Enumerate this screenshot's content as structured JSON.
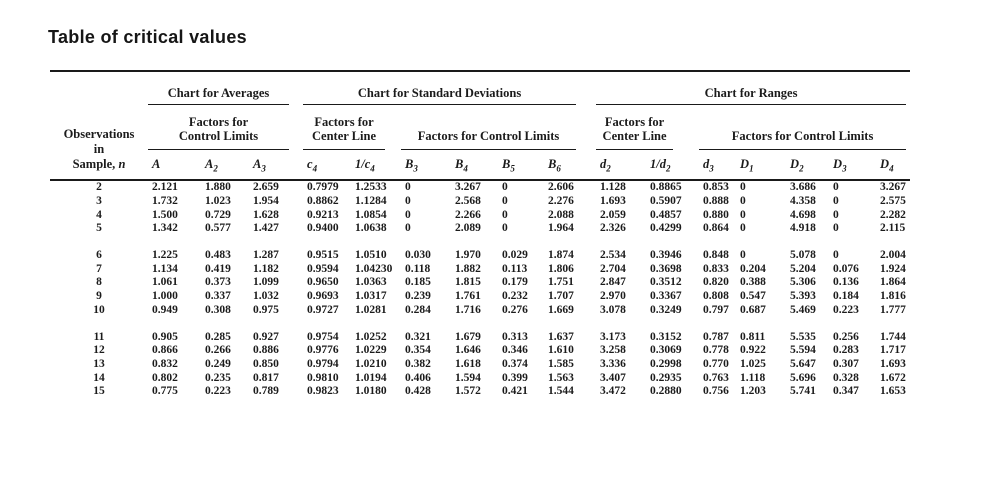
{
  "title": "Table of critical values",
  "colors": {
    "text": "#1b1b1b",
    "rule": "#1a1a1a",
    "background": "#ffffff"
  },
  "table": {
    "obs_header": {
      "line1": "Observations",
      "line2": "in",
      "line3_prefix": "Sample, ",
      "line3_italic": "n"
    },
    "group_headers": [
      "Chart for Averages",
      "Chart for Standard Deviations",
      "Chart for Ranges"
    ],
    "sub_headers": [
      {
        "line1": "Factors for",
        "line2": "Control Limits"
      },
      {
        "line1": "Factors for",
        "line2": "Center Line"
      },
      {
        "line1": "Factors for Control Limits",
        "line2": ""
      },
      {
        "line1": "Factors for",
        "line2": "Center Line"
      },
      {
        "line1": "Factors for Control Limits",
        "line2": ""
      }
    ],
    "col_symbols": [
      {
        "base": "A",
        "sub": ""
      },
      {
        "base": "A",
        "sub": "2"
      },
      {
        "base": "A",
        "sub": "3"
      },
      {
        "base": "c",
        "sub": "4"
      },
      {
        "base": "1/c",
        "sub": "4"
      },
      {
        "base": "B",
        "sub": "3"
      },
      {
        "base": "B",
        "sub": "4"
      },
      {
        "base": "B",
        "sub": "5"
      },
      {
        "base": "B",
        "sub": "6"
      },
      {
        "base": "d",
        "sub": "2"
      },
      {
        "base": "1/d",
        "sub": "2"
      },
      {
        "base": "d",
        "sub": "3"
      },
      {
        "base": "D",
        "sub": "1"
      },
      {
        "base": "D",
        "sub": "2"
      },
      {
        "base": "D",
        "sub": "3"
      },
      {
        "base": "D",
        "sub": "4"
      }
    ],
    "row_groups": [
      [
        {
          "n": "2",
          "v": [
            "2.121",
            "1.880",
            "2.659",
            "0.7979",
            "1.2533",
            "0",
            "3.267",
            "0",
            "2.606",
            "1.128",
            "0.8865",
            "0.853",
            "0",
            "3.686",
            "0",
            "3.267"
          ]
        },
        {
          "n": "3",
          "v": [
            "1.732",
            "1.023",
            "1.954",
            "0.8862",
            "1.1284",
            "0",
            "2.568",
            "0",
            "2.276",
            "1.693",
            "0.5907",
            "0.888",
            "0",
            "4.358",
            "0",
            "2.575"
          ]
        },
        {
          "n": "4",
          "v": [
            "1.500",
            "0.729",
            "1.628",
            "0.9213",
            "1.0854",
            "0",
            "2.266",
            "0",
            "2.088",
            "2.059",
            "0.4857",
            "0.880",
            "0",
            "4.698",
            "0",
            "2.282"
          ]
        },
        {
          "n": "5",
          "v": [
            "1.342",
            "0.577",
            "1.427",
            "0.9400",
            "1.0638",
            "0",
            "2.089",
            "0",
            "1.964",
            "2.326",
            "0.4299",
            "0.864",
            "0",
            "4.918",
            "0",
            "2.115"
          ]
        }
      ],
      [
        {
          "n": "6",
          "v": [
            "1.225",
            "0.483",
            "1.287",
            "0.9515",
            "1.0510",
            "0.030",
            "1.970",
            "0.029",
            "1.874",
            "2.534",
            "0.3946",
            "0.848",
            "0",
            "5.078",
            "0",
            "2.004"
          ]
        },
        {
          "n": "7",
          "v": [
            "1.134",
            "0.419",
            "1.182",
            "0.9594",
            "1.04230",
            "0.118",
            "1.882",
            "0.113",
            "1.806",
            "2.704",
            "0.3698",
            "0.833",
            "0.204",
            "5.204",
            "0.076",
            "1.924"
          ]
        },
        {
          "n": "8",
          "v": [
            "1.061",
            "0.373",
            "1.099",
            "0.9650",
            "1.0363",
            "0.185",
            "1.815",
            "0.179",
            "1.751",
            "2.847",
            "0.3512",
            "0.820",
            "0.388",
            "5.306",
            "0.136",
            "1.864"
          ]
        },
        {
          "n": "9",
          "v": [
            "1.000",
            "0.337",
            "1.032",
            "0.9693",
            "1.0317",
            "0.239",
            "1.761",
            "0.232",
            "1.707",
            "2.970",
            "0.3367",
            "0.808",
            "0.547",
            "5.393",
            "0.184",
            "1.816"
          ]
        },
        {
          "n": "10",
          "v": [
            "0.949",
            "0.308",
            "0.975",
            "0.9727",
            "1.0281",
            "0.284",
            "1.716",
            "0.276",
            "1.669",
            "3.078",
            "0.3249",
            "0.797",
            "0.687",
            "5.469",
            "0.223",
            "1.777"
          ]
        }
      ],
      [
        {
          "n": "11",
          "v": [
            "0.905",
            "0.285",
            "0.927",
            "0.9754",
            "1.0252",
            "0.321",
            "1.679",
            "0.313",
            "1.637",
            "3.173",
            "0.3152",
            "0.787",
            "0.811",
            "5.535",
            "0.256",
            "1.744"
          ]
        },
        {
          "n": "12",
          "v": [
            "0.866",
            "0.266",
            "0.886",
            "0.9776",
            "1.0229",
            "0.354",
            "1.646",
            "0.346",
            "1.610",
            "3.258",
            "0.3069",
            "0.778",
            "0.922",
            "5.594",
            "0.283",
            "1.717"
          ]
        },
        {
          "n": "13",
          "v": [
            "0.832",
            "0.249",
            "0.850",
            "0.9794",
            "1.0210",
            "0.382",
            "1.618",
            "0.374",
            "1.585",
            "3.336",
            "0.2998",
            "0.770",
            "1.025",
            "5.647",
            "0.307",
            "1.693"
          ]
        },
        {
          "n": "14",
          "v": [
            "0.802",
            "0.235",
            "0.817",
            "0.9810",
            "1.0194",
            "0.406",
            "1.594",
            "0.399",
            "1.563",
            "3.407",
            "0.2935",
            "0.763",
            "1.118",
            "5.696",
            "0.328",
            "1.672"
          ]
        },
        {
          "n": "15",
          "v": [
            "0.775",
            "0.223",
            "0.789",
            "0.9823",
            "1.0180",
            "0.428",
            "1.572",
            "0.421",
            "1.544",
            "3.472",
            "0.2880",
            "0.756",
            "1.203",
            "5.741",
            "0.347",
            "1.653"
          ]
        }
      ]
    ]
  }
}
